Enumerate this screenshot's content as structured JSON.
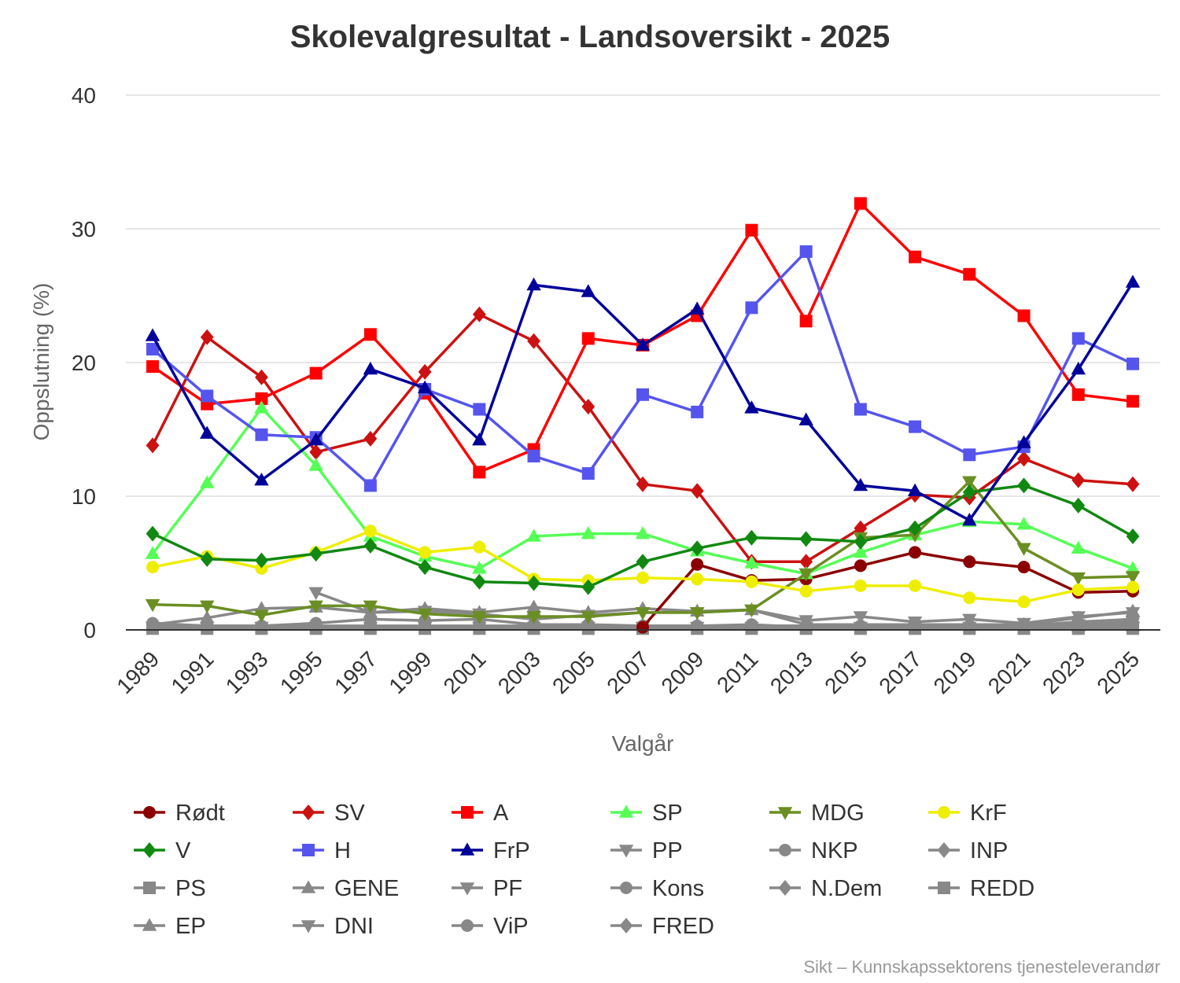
{
  "chart_data": {
    "type": "line",
    "title": "Skolevalgresultat - Landsoversikt - 2025",
    "xlabel": "Valgår",
    "ylabel": "Oppslutning (%)",
    "ylim": [
      0,
      40
    ],
    "yticks": [
      "0",
      "10",
      "20",
      "30",
      "40"
    ],
    "grid": true,
    "legend_position": "bottom",
    "credit": "Sikt – Kunnskapssektorens tjenesteleverandør",
    "categories": [
      "1989",
      "1991",
      "1993",
      "1995",
      "1997",
      "1999",
      "2001",
      "2003",
      "2005",
      "2007",
      "2009",
      "2011",
      "2013",
      "2015",
      "2017",
      "2019",
      "2021",
      "2023",
      "2025"
    ],
    "series": [
      {
        "name": "Rødt",
        "color": "#8b0000",
        "marker": "circle",
        "values": [
          null,
          null,
          null,
          null,
          null,
          null,
          null,
          null,
          null,
          0.2,
          4.9,
          3.7,
          3.8,
          4.8,
          5.8,
          5.1,
          4.7,
          2.8,
          2.9
        ]
      },
      {
        "name": "SV",
        "color": "#cc1111",
        "marker": "diamond",
        "values": [
          13.8,
          21.9,
          18.9,
          13.3,
          14.3,
          19.3,
          23.6,
          21.6,
          16.7,
          10.9,
          10.4,
          5.1,
          5.1,
          7.6,
          10.1,
          9.9,
          12.8,
          11.2,
          10.9
        ]
      },
      {
        "name": "A",
        "color": "#ff0000",
        "marker": "square",
        "values": [
          19.7,
          16.9,
          17.3,
          19.2,
          22.1,
          17.7,
          11.8,
          13.5,
          21.8,
          21.3,
          23.5,
          29.9,
          23.1,
          31.9,
          27.9,
          26.6,
          23.5,
          17.6,
          17.1
        ]
      },
      {
        "name": "SP",
        "color": "#55ff55",
        "marker": "triangle-up",
        "values": [
          5.7,
          11.0,
          16.6,
          12.3,
          7.0,
          5.5,
          4.6,
          7.0,
          7.2,
          7.2,
          5.9,
          5.0,
          4.2,
          5.8,
          7.1,
          8.1,
          7.9,
          6.1,
          4.6
        ]
      },
      {
        "name": "MDG",
        "color": "#6b8e23",
        "marker": "triangle-down",
        "values": [
          1.9,
          1.8,
          1.1,
          1.8,
          1.8,
          1.2,
          1.0,
          1.0,
          1.0,
          1.3,
          1.3,
          1.5,
          4.2,
          6.9,
          7.1,
          11.1,
          6.1,
          3.9,
          4.0
        ]
      },
      {
        "name": "KrF",
        "color": "#eeee00",
        "marker": "circle",
        "values": [
          4.7,
          5.5,
          4.6,
          5.8,
          7.4,
          5.8,
          6.2,
          3.8,
          3.7,
          3.9,
          3.8,
          3.6,
          2.9,
          3.3,
          3.3,
          2.4,
          2.1,
          3.0,
          3.2
        ]
      },
      {
        "name": "V",
        "color": "#118811",
        "marker": "diamond",
        "values": [
          7.2,
          5.3,
          5.2,
          5.7,
          6.3,
          4.7,
          3.6,
          3.5,
          3.2,
          5.1,
          6.1,
          6.9,
          6.8,
          6.6,
          7.6,
          10.3,
          10.8,
          9.3,
          7.0
        ]
      },
      {
        "name": "H",
        "color": "#5555ee",
        "marker": "square",
        "values": [
          21.0,
          17.5,
          14.6,
          14.4,
          10.8,
          18.0,
          16.5,
          13.0,
          11.7,
          17.6,
          16.3,
          24.1,
          28.3,
          16.5,
          15.2,
          13.1,
          13.7,
          21.8,
          19.9
        ]
      },
      {
        "name": "FrP",
        "color": "#000099",
        "marker": "triangle-up",
        "values": [
          22.0,
          14.7,
          11.2,
          14.2,
          19.5,
          18.1,
          14.2,
          25.8,
          25.3,
          21.3,
          24.0,
          16.6,
          15.7,
          10.8,
          10.4,
          8.2,
          14.0,
          19.5,
          26.0
        ]
      },
      {
        "name": "PP",
        "color": "#888888",
        "marker": "triangle-down",
        "values": [
          0.2,
          0.2,
          0.2,
          0.2,
          0.2,
          0.2,
          0.2,
          0.2,
          0.2,
          0.2,
          0.2,
          0.2,
          0.2,
          0.2,
          0.2,
          0.2,
          0.2,
          0.2,
          0.2
        ]
      },
      {
        "name": "NKP",
        "color": "#888888",
        "marker": "circle",
        "values": [
          0.5,
          0.3,
          0.3,
          0.5,
          0.8,
          0.7,
          0.8,
          0.4,
          0.4,
          0.3,
          0.3,
          0.4,
          0.2,
          0.2,
          0.2,
          0.2,
          0.2,
          0.3,
          0.3
        ]
      },
      {
        "name": "INP",
        "color": "#888888",
        "marker": "diamond",
        "values": [
          0.3,
          0.3,
          0.3,
          0.3,
          0.3,
          0.3,
          0.3,
          0.3,
          0.3,
          0.3,
          0.3,
          0.3,
          0.3,
          0.3,
          0.3,
          0.3,
          0.3,
          0.4,
          0.4
        ]
      },
      {
        "name": "PS",
        "color": "#888888",
        "marker": "square",
        "values": [
          0.1,
          0.1,
          0.1,
          0.1,
          0.1,
          0.1,
          0.1,
          0.1,
          0.1,
          0.1,
          0.1,
          0.1,
          0.1,
          0.1,
          0.1,
          0.1,
          0.1,
          0.1,
          0.1
        ]
      },
      {
        "name": "GENE",
        "color": "#888888",
        "marker": "triangle-up",
        "values": [
          0.4,
          0.9,
          1.6,
          1.7,
          1.3,
          1.6,
          1.3,
          1.7,
          1.3,
          1.6,
          1.4,
          1.5,
          0.4,
          0.4,
          0.4,
          0.4,
          0.4,
          0.9,
          1.4
        ]
      },
      {
        "name": "PF",
        "color": "#888888",
        "marker": "triangle-down",
        "values": [
          null,
          null,
          null,
          2.8,
          1.3,
          1.4,
          1.2,
          0.8,
          1.1,
          1.3,
          1.3,
          1.5,
          0.7,
          1.0,
          0.6,
          0.8,
          0.5,
          1.0,
          1.3
        ]
      },
      {
        "name": "Kons",
        "color": "#888888",
        "marker": "circle",
        "values": [
          null,
          null,
          null,
          null,
          null,
          null,
          null,
          null,
          null,
          0.3,
          0.3,
          0.3,
          0.3,
          0.3,
          0.3,
          0.3,
          0.3,
          0.3,
          0.3
        ]
      },
      {
        "name": "N.Dem",
        "color": "#888888",
        "marker": "diamond",
        "values": [
          null,
          null,
          null,
          null,
          null,
          null,
          null,
          null,
          null,
          null,
          null,
          null,
          null,
          null,
          null,
          null,
          0.3,
          0.6,
          0.8
        ]
      },
      {
        "name": "REDD",
        "color": "#888888",
        "marker": "square",
        "values": [
          null,
          null,
          null,
          null,
          null,
          null,
          null,
          null,
          null,
          null,
          null,
          null,
          null,
          null,
          null,
          null,
          null,
          0.2,
          0.2
        ]
      },
      {
        "name": "EP",
        "color": "#888888",
        "marker": "triangle-up",
        "values": [
          null,
          null,
          null,
          null,
          null,
          null,
          null,
          null,
          null,
          null,
          null,
          null,
          null,
          null,
          null,
          null,
          null,
          0.3,
          0.3
        ]
      },
      {
        "name": "DNI",
        "color": "#888888",
        "marker": "triangle-down",
        "values": [
          null,
          null,
          null,
          null,
          null,
          null,
          null,
          null,
          null,
          null,
          null,
          null,
          null,
          null,
          null,
          null,
          null,
          0.4,
          0.6
        ]
      },
      {
        "name": "ViP",
        "color": "#888888",
        "marker": "circle",
        "values": [
          null,
          null,
          null,
          null,
          null,
          null,
          null,
          null,
          null,
          null,
          null,
          null,
          null,
          null,
          null,
          null,
          null,
          null,
          0.4
        ]
      },
      {
        "name": "FRED",
        "color": "#888888",
        "marker": "diamond",
        "values": [
          null,
          null,
          null,
          null,
          null,
          null,
          null,
          null,
          null,
          null,
          null,
          null,
          null,
          null,
          null,
          null,
          null,
          null,
          0.5
        ]
      }
    ]
  }
}
